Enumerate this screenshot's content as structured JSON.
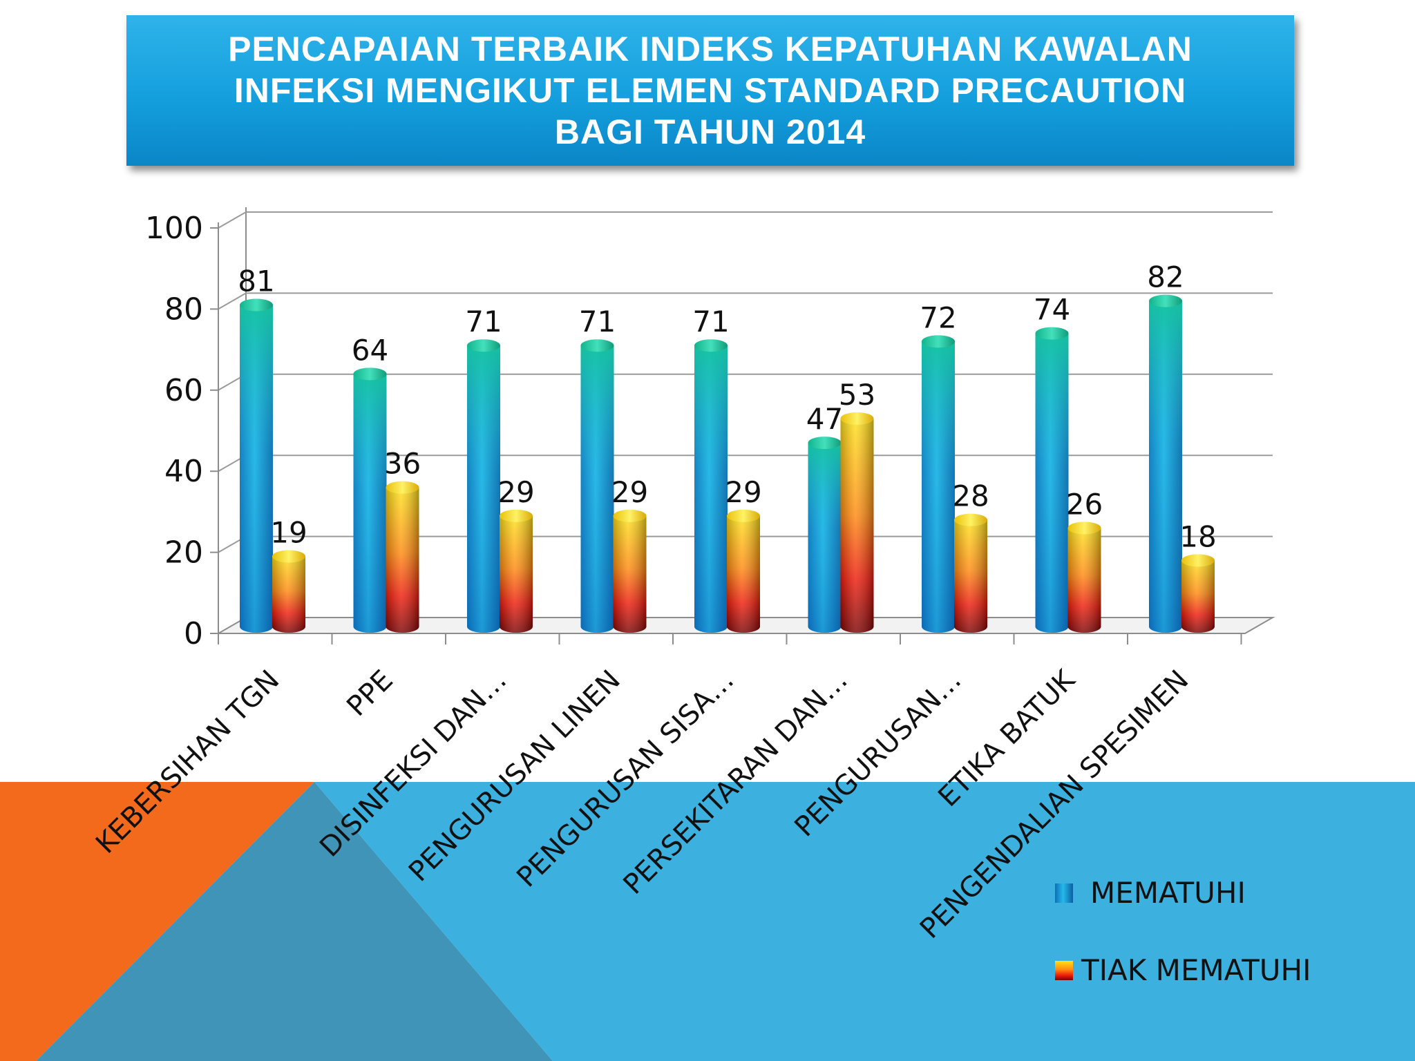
{
  "header": {
    "title_lines": [
      "PENCAPAIAN TERBAIK INDEKS KEPATUHAN KAWALAN",
      "INFEKSI MENGIKUT ELEMEN STANDARD PRECAUTION",
      "BAGI TAHUN 2014"
    ]
  },
  "colors": {
    "title_bg": "#149fdd",
    "decor_blue": "#3cb1e0",
    "decor_orange": "#f46a1c",
    "decor_overlap": "#3f94b8",
    "mematuhi": "#1aa6dc",
    "tiak_mematuhi": "#f7c31a"
  },
  "chart_data": {
    "type": "bar",
    "title": "",
    "xlabel": "",
    "ylabel": "",
    "ylim": [
      0,
      100
    ],
    "yticks": [
      0,
      20,
      40,
      60,
      80,
      100
    ],
    "grid": true,
    "legend_position": "bottom-right",
    "style": "3d-cylinder",
    "categories": [
      "KEBERSIHAN TGN",
      "PPE",
      "DISINFEKSI DAN…",
      "PENGURUSAN LINEN",
      "PENGURUSAN SISA…",
      "PERSEKITARAN DAN…",
      "PENGURUSAN…",
      "ETIKA BATUK",
      "PENGENDALIAN SPESIMEN"
    ],
    "series": [
      {
        "name": "MEMATUHI",
        "values": [
          81,
          64,
          71,
          71,
          71,
          47,
          72,
          74,
          82
        ]
      },
      {
        "name": "TIAK MEMATUHI",
        "values": [
          19,
          36,
          29,
          29,
          29,
          53,
          28,
          26,
          18
        ]
      }
    ]
  }
}
